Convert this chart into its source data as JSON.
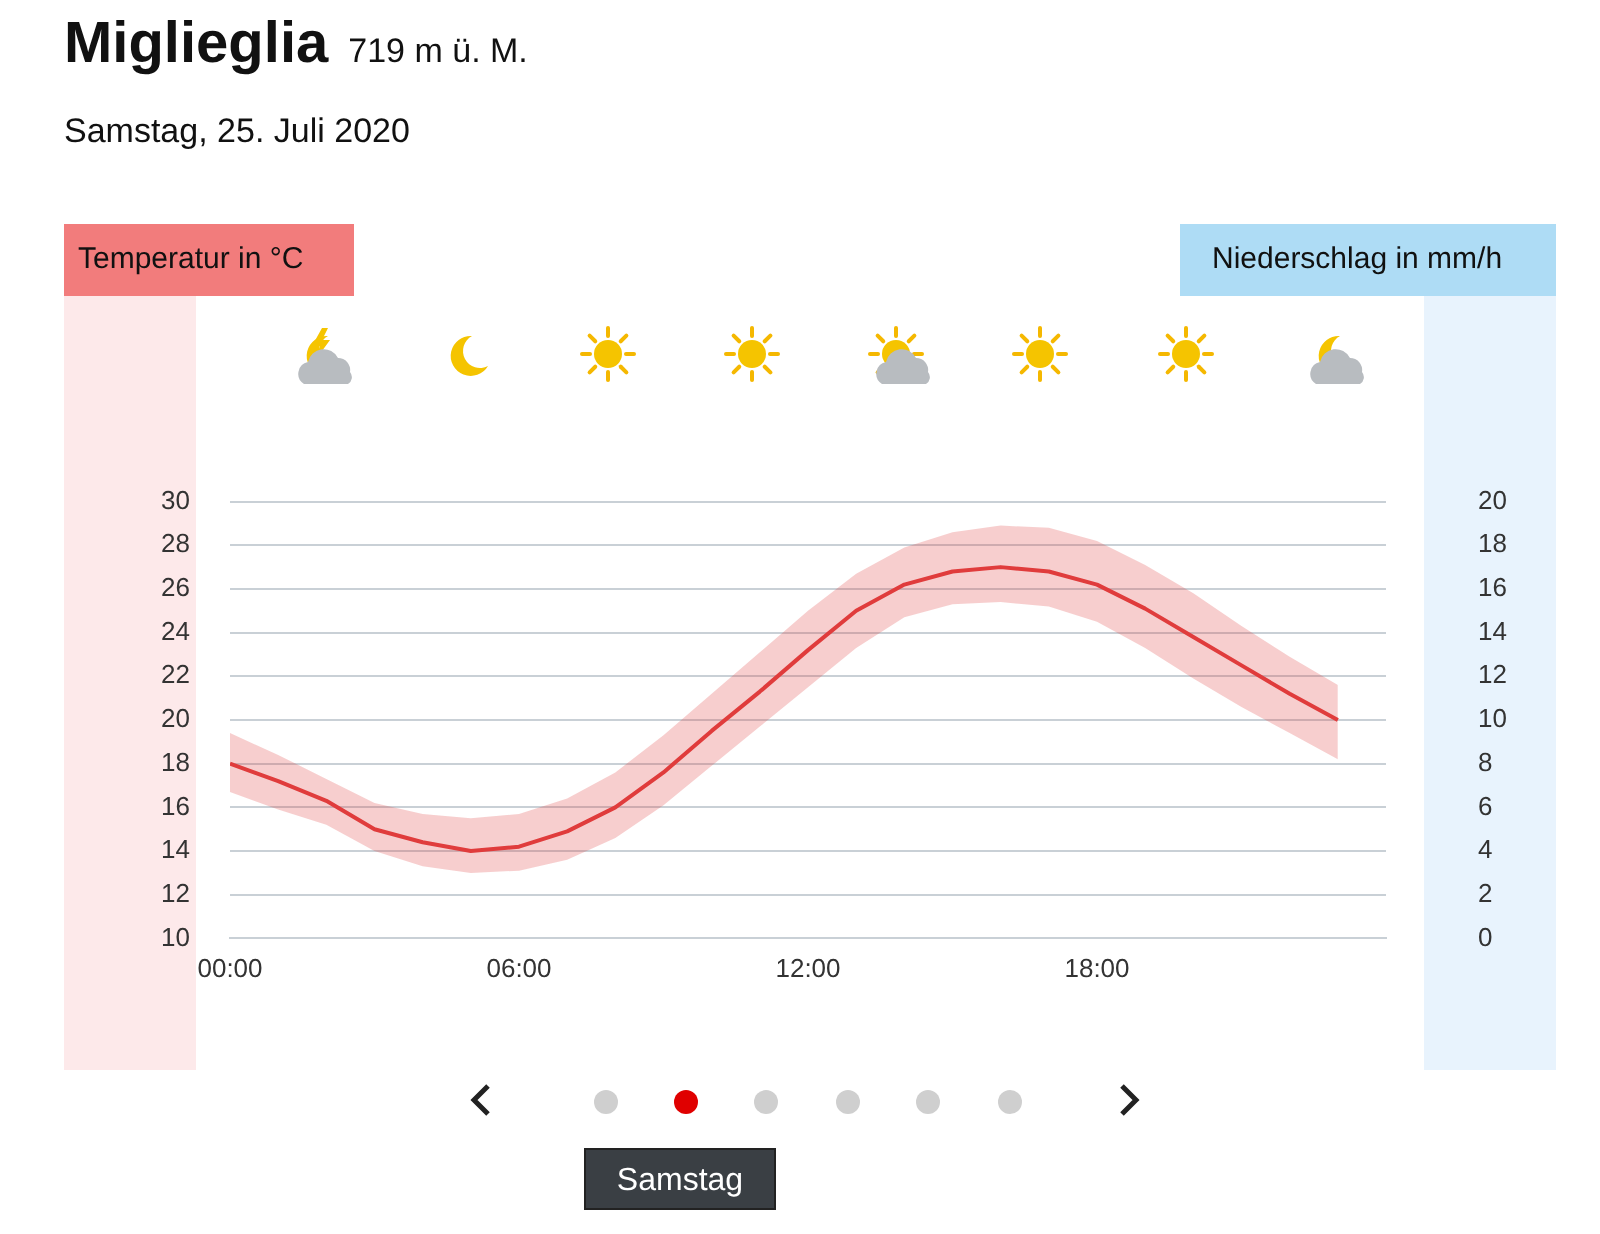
{
  "chart_data": {
    "type": "line",
    "title": "Miglieglia",
    "subtitle": "719 m ü. M.",
    "annotations": [
      "Samstag, 25. Juli 2020",
      "Samstag",
      "Temperatur in °C",
      "Niederschlag in mm/h"
    ],
    "x": [
      0,
      1,
      2,
      3,
      4,
      5,
      6,
      7,
      8,
      9,
      10,
      11,
      12,
      13,
      14,
      15,
      16,
      17,
      18,
      19,
      20,
      21,
      22,
      23
    ],
    "series": [
      {
        "color": "#e03c3c",
        "values": [
          18,
          17.2,
          16.3,
          15.0,
          14.4,
          14.0,
          14.2,
          14.9,
          16.0,
          17.6,
          19.5,
          21.3,
          23.2,
          25.0,
          26.2,
          26.8,
          27.0,
          26.8,
          26.2,
          25.1,
          23.8,
          22.5,
          21.2,
          20.0
        ],
        "lower": [
          16.7,
          15.9,
          15.2,
          14.0,
          13.3,
          13.0,
          13.1,
          13.6,
          14.6,
          16.1,
          17.9,
          19.7,
          21.5,
          23.3,
          24.7,
          25.3,
          25.4,
          25.2,
          24.5,
          23.3,
          21.9,
          20.6,
          19.4,
          18.2
        ],
        "upper": [
          19.4,
          18.4,
          17.3,
          16.2,
          15.7,
          15.5,
          15.7,
          16.4,
          17.6,
          19.3,
          21.2,
          23.1,
          25.0,
          26.7,
          27.9,
          28.6,
          28.9,
          28.8,
          28.2,
          27.1,
          25.8,
          24.3,
          22.9,
          21.6
        ]
      }
    ],
    "xlim": [
      0,
      24
    ],
    "xticks": [
      {
        "value": 0,
        "label": "00:00"
      },
      {
        "value": 6,
        "label": "06:00"
      },
      {
        "value": 12,
        "label": "12:00"
      },
      {
        "value": 18,
        "label": "18:00"
      }
    ],
    "ylim": [
      10,
      30
    ],
    "yticks": [
      10,
      12,
      14,
      16,
      18,
      20,
      22,
      24,
      26,
      28,
      30
    ],
    "y2lim": [
      0,
      20
    ],
    "y2ticks": [
      0,
      2,
      4,
      6,
      8,
      10,
      12,
      14,
      16,
      18,
      20
    ],
    "grid": "y",
    "legend": false,
    "marker": "none",
    "line_style": "solid"
  }
}
